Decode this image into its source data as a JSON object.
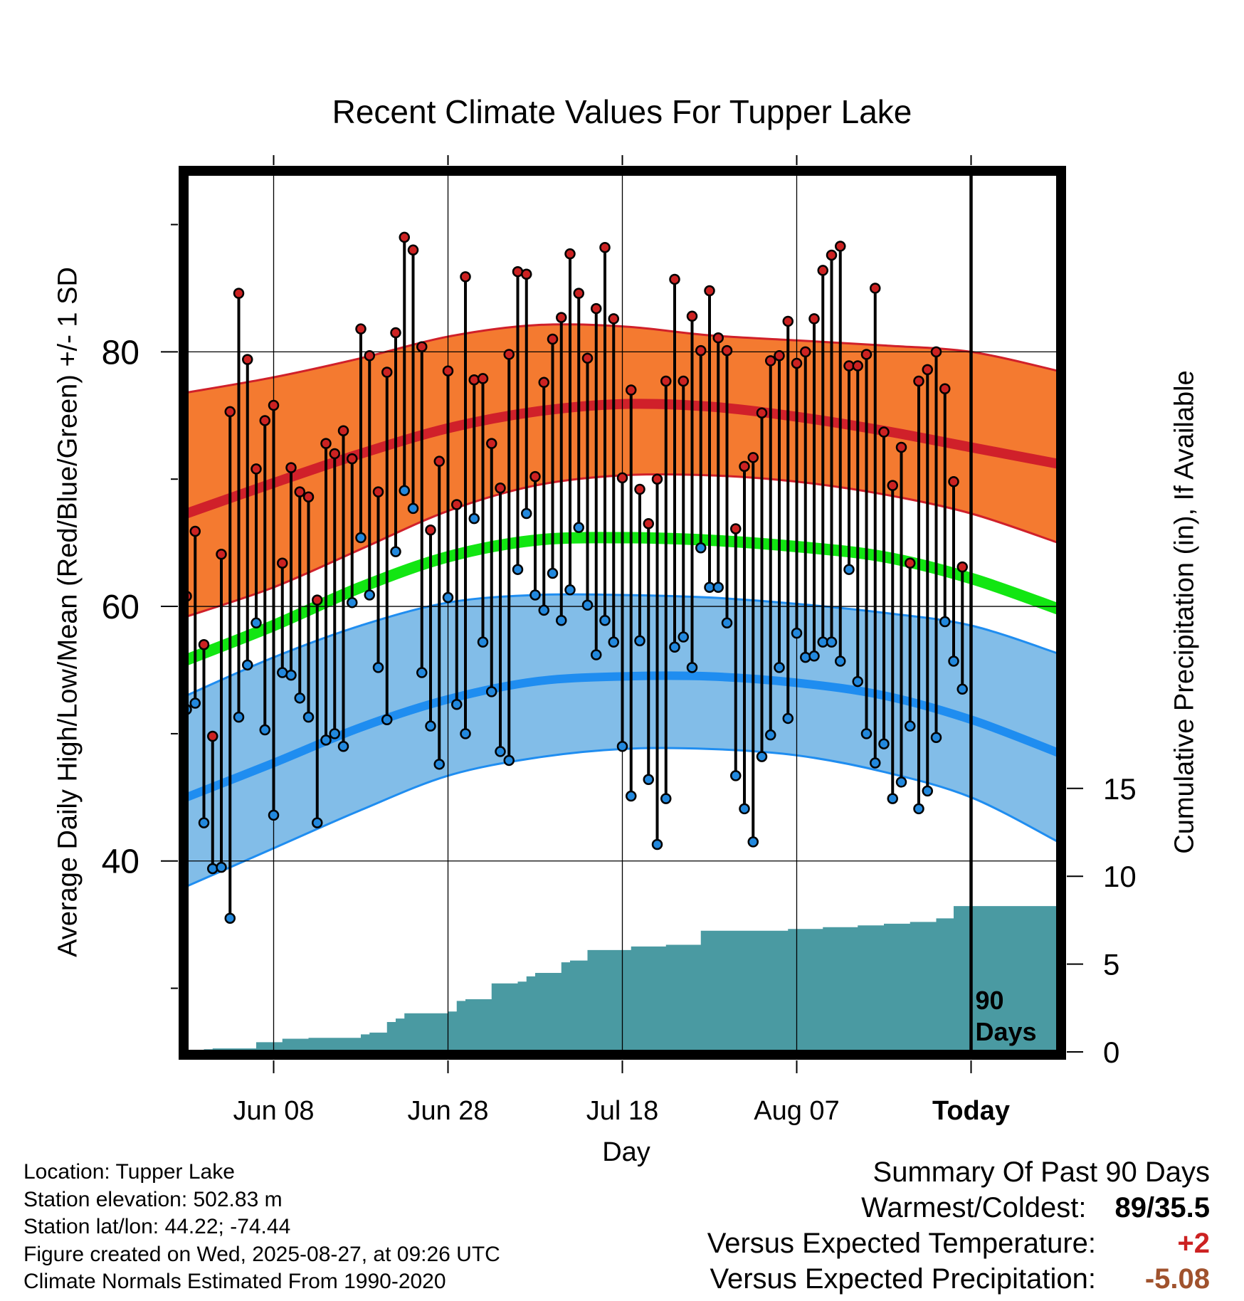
{
  "title": "Recent Climate Values For Tupper Lake",
  "ylabel_left": "Average Daily High/Low/Mean (Red/Blue/Green) +/- 1 SD",
  "ylabel_right": "Cumulative Precipitation (in), If Available",
  "xlabel": "Day",
  "today_marker_label": "90\nDays",
  "metadata": {
    "location": "Location: Tupper Lake",
    "elevation": "Station elevation: 502.83 m",
    "latlon": "Station lat/lon: 44.22; -74.44",
    "created": "Figure created on Wed, 2025-08-27, at 09:26 UTC",
    "normals": "Climate Normals Estimated From 1990-2020"
  },
  "summary": {
    "heading": "Summary Of Past 90 Days",
    "warmest_coldest_label": "Warmest/Coldest:",
    "warmest_coldest_value": "89/35.5",
    "vs_temp_label": "Versus Expected Temperature:",
    "vs_temp_value": "+2",
    "vs_precip_label": "Versus Expected Precipitation:",
    "vs_precip_value": "-5.08"
  },
  "colors": {
    "high_band": "#f47a30",
    "high_line": "#d0202a",
    "low_band": "#82bde8",
    "low_line": "#1f8df0",
    "mean_line": "#12e612",
    "precip_fill": "#4a9aa2",
    "high_dot": "#cc2222",
    "low_dot": "#2288dd",
    "vs_temp_value": "#cc2222",
    "vs_precip_value": "#a0522d"
  },
  "chart_data": {
    "type": "line",
    "x_ticks": [
      "Jun 08",
      "Jun 28",
      "Jul 18",
      "Aug 07",
      "Today"
    ],
    "x_tick_days": [
      10,
      30,
      50,
      70,
      90
    ],
    "x_range_days": [
      0,
      100
    ],
    "y_left_ticks": [
      40,
      60,
      80
    ],
    "y_left_range": [
      25,
      94
    ],
    "y_right_ticks": [
      0,
      5,
      10,
      15
    ],
    "y_right_range": [
      0,
      50
    ],
    "grid": true,
    "normals": {
      "x": [
        0,
        10,
        20,
        30,
        40,
        50,
        60,
        70,
        80,
        90,
        100
      ],
      "high_mean": [
        67.3,
        69.7,
        72.0,
        74.0,
        75.3,
        75.9,
        75.7,
        74.9,
        73.8,
        72.5,
        71.2
      ],
      "high_upper": [
        76.8,
        78.0,
        79.5,
        81.2,
        82.1,
        82.0,
        81.3,
        80.9,
        80.5,
        80.0,
        78.5
      ],
      "high_lower": [
        59.2,
        61.5,
        64.5,
        67.5,
        69.5,
        70.3,
        70.3,
        69.8,
        68.8,
        67.3,
        65.0
      ],
      "mean": [
        55.8,
        58.5,
        61.5,
        63.9,
        65.2,
        65.4,
        65.2,
        64.7,
        63.9,
        62.2,
        59.8
      ],
      "low_mean": [
        45.0,
        47.7,
        50.5,
        52.7,
        54.1,
        54.5,
        54.5,
        54.0,
        53.0,
        51.1,
        48.5
      ],
      "low_upper": [
        53.0,
        56.0,
        58.5,
        60.3,
        60.9,
        60.9,
        60.7,
        60.2,
        59.5,
        58.5,
        56.3
      ],
      "low_lower": [
        38.0,
        41.0,
        44.0,
        46.7,
        48.1,
        48.8,
        48.8,
        48.3,
        47.0,
        45.0,
        41.5
      ]
    },
    "observed": {
      "day": [
        0,
        1,
        2,
        3,
        4,
        5,
        6,
        7,
        8,
        9,
        10,
        11,
        12,
        13,
        14,
        15,
        16,
        17,
        18,
        19,
        20,
        21,
        22,
        23,
        24,
        25,
        26,
        27,
        28,
        29,
        30,
        31,
        32,
        33,
        34,
        35,
        36,
        37,
        38,
        39,
        40,
        41,
        42,
        43,
        44,
        45,
        46,
        47,
        48,
        49,
        50,
        51,
        52,
        53,
        54,
        55,
        56,
        57,
        58,
        59,
        60,
        61,
        62,
        63,
        64,
        65,
        66,
        67,
        68,
        69,
        70,
        71,
        72,
        73,
        74,
        75,
        76,
        77,
        78,
        79,
        80,
        81,
        82,
        83,
        84,
        85,
        86,
        87,
        88,
        89
      ],
      "high": [
        60.8,
        65.9,
        57.0,
        49.8,
        64.1,
        75.3,
        84.6,
        79.4,
        70.8,
        74.6,
        75.8,
        63.4,
        70.9,
        69.0,
        68.6,
        60.5,
        72.8,
        72.0,
        73.8,
        71.6,
        81.8,
        79.7,
        69.0,
        78.4,
        81.5,
        89.0,
        88.0,
        80.4,
        66.0,
        71.4,
        78.5,
        68.0,
        85.9,
        77.8,
        77.9,
        72.8,
        69.3,
        79.8,
        86.3,
        86.1,
        70.2,
        77.6,
        81.0,
        82.7,
        87.7,
        84.6,
        79.5,
        83.4,
        88.2,
        82.6,
        70.1,
        77.0,
        69.2,
        66.5,
        70.0,
        77.7,
        85.7,
        77.7,
        82.8,
        80.1,
        84.8,
        81.1,
        80.1,
        66.1,
        71.0,
        71.7,
        75.2,
        79.3,
        79.7,
        82.4,
        79.1,
        80.0,
        82.6,
        86.4,
        87.6,
        88.3,
        78.9,
        78.9,
        79.8,
        85.0,
        73.7,
        69.5,
        72.5,
        63.4,
        77.7,
        78.6,
        80.0,
        77.1,
        69.8,
        63.1
      ],
      "low": [
        51.9,
        52.4,
        43.0,
        39.4,
        39.5,
        35.5,
        51.3,
        55.4,
        58.7,
        50.3,
        43.6,
        54.8,
        54.6,
        52.8,
        51.3,
        43.0,
        49.5,
        50.0,
        49.0,
        60.3,
        65.4,
        60.9,
        55.2,
        51.1,
        64.3,
        69.1,
        67.7,
        54.8,
        50.6,
        47.6,
        60.7,
        52.3,
        50.0,
        66.9,
        57.2,
        53.3,
        48.6,
        47.9,
        62.9,
        67.3,
        60.9,
        59.7,
        62.6,
        58.9,
        61.3,
        66.2,
        60.1,
        56.2,
        58.9,
        57.2,
        49.0,
        45.1,
        57.3,
        46.4,
        41.3,
        44.9,
        56.8,
        57.6,
        55.2,
        64.6,
        61.5,
        61.5,
        58.7,
        46.7,
        44.1,
        41.5,
        48.2,
        49.9,
        55.2,
        51.2,
        57.9,
        56.0,
        56.1,
        57.2,
        57.2,
        55.7,
        62.9,
        54.1,
        50.0,
        47.7,
        49.2,
        44.9,
        46.2,
        50.6,
        44.1,
        45.5,
        49.7,
        58.8,
        55.7,
        53.5
      ]
    },
    "cumulative_precip": {
      "day": [
        2,
        3,
        4,
        5,
        6,
        7,
        8,
        9,
        10,
        11,
        12,
        13,
        14,
        15,
        16,
        17,
        18,
        19,
        20,
        21,
        22,
        23,
        24,
        25,
        26,
        27,
        28,
        29,
        30,
        31,
        32,
        33,
        34,
        35,
        36,
        37,
        38,
        39,
        40,
        41,
        42,
        43,
        44,
        45,
        46,
        47,
        48,
        49,
        50,
        51,
        52,
        53,
        54,
        55,
        56,
        57,
        58,
        59,
        60,
        61,
        62,
        63,
        64,
        65,
        66,
        67,
        68,
        69,
        70,
        71,
        72,
        73,
        74,
        75,
        76,
        77,
        78,
        79,
        80,
        81,
        82,
        83,
        84,
        85,
        86,
        87,
        88,
        89,
        90,
        100
      ],
      "inches": [
        0.1,
        0.15,
        0.2,
        0.2,
        0.2,
        0.2,
        0.2,
        0.55,
        0.55,
        0.55,
        0.75,
        0.75,
        0.75,
        0.8,
        0.8,
        0.8,
        0.8,
        0.8,
        0.8,
        1.0,
        1.1,
        1.1,
        1.7,
        1.9,
        2.2,
        2.2,
        2.2,
        2.2,
        2.2,
        2.3,
        2.9,
        3.0,
        3.0,
        3.0,
        3.9,
        3.9,
        3.9,
        4.0,
        4.3,
        4.5,
        4.5,
        4.5,
        5.1,
        5.2,
        5.2,
        5.8,
        5.8,
        5.8,
        5.8,
        5.8,
        6.0,
        6.0,
        6.0,
        6.0,
        6.1,
        6.1,
        6.1,
        6.1,
        6.9,
        6.9,
        6.9,
        6.9,
        6.9,
        6.9,
        6.9,
        6.9,
        6.9,
        6.9,
        7.0,
        7.0,
        7.0,
        7.0,
        7.1,
        7.1,
        7.1,
        7.1,
        7.2,
        7.2,
        7.2,
        7.3,
        7.3,
        7.3,
        7.4,
        7.4,
        7.4,
        7.6,
        7.6,
        8.3,
        8.3,
        8.3
      ]
    }
  }
}
